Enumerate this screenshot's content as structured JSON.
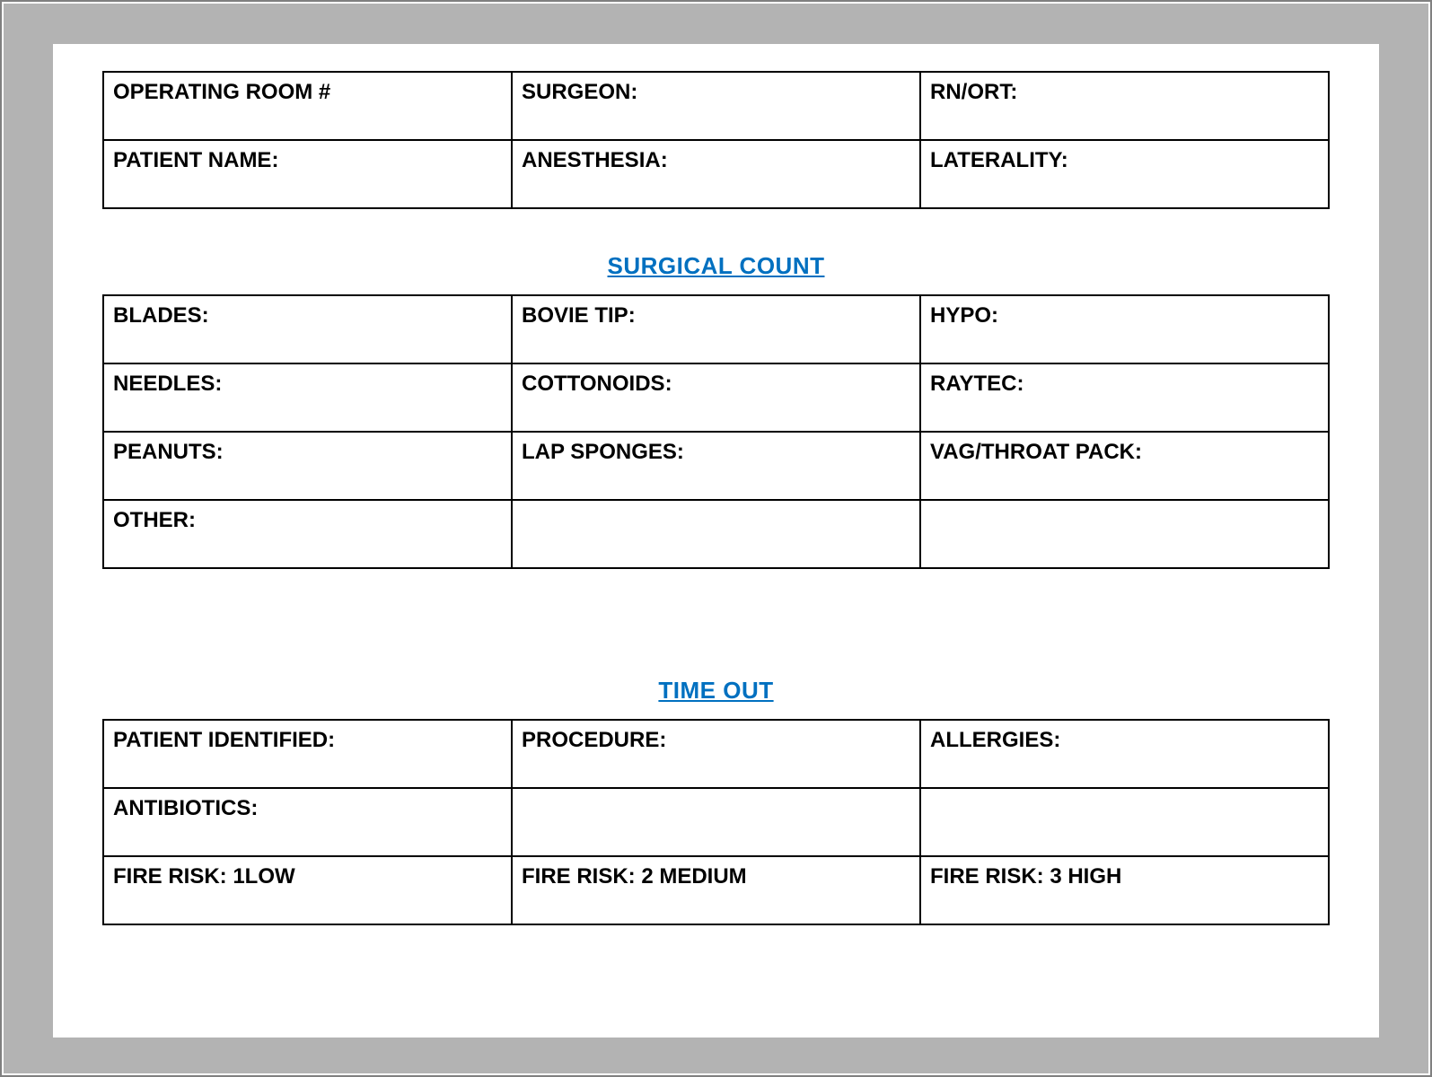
{
  "colors": {
    "frame_border": "#808080",
    "mat_background": "#b3b3b3",
    "page_background": "#ffffff",
    "cell_border": "#000000",
    "text": "#000000",
    "heading_surgical": "#0070c0",
    "heading_timeout": "#0070c0"
  },
  "typography": {
    "cell_font_size_pt": 18,
    "heading_font_size_pt": 20,
    "font_family": "Arial",
    "cell_font_weight": "700",
    "heading_font_weight": "700",
    "heading_underline": true
  },
  "layout": {
    "columns": 3,
    "column_widths_pct": [
      33.3,
      33.3,
      33.4
    ]
  },
  "header_table": {
    "rows": [
      [
        "OPERATING ROOM #",
        "SURGEON:",
        "RN/ORT:"
      ],
      [
        "PATIENT NAME:",
        "ANESTHESIA:",
        "LATERALITY:"
      ]
    ]
  },
  "surgical_count": {
    "heading": "SURGICAL COUNT",
    "rows": [
      [
        "BLADES:",
        "BOVIE TIP:",
        "HYPO:"
      ],
      [
        "NEEDLES:",
        "COTTONOIDS:",
        "RAYTEC:"
      ],
      [
        "PEANUTS:",
        "LAP SPONGES:",
        "VAG/THROAT PACK:"
      ],
      [
        "OTHER:",
        "",
        ""
      ]
    ]
  },
  "time_out": {
    "heading": "TIME OUT",
    "rows": [
      [
        "PATIENT IDENTIFIED:",
        "PROCEDURE:",
        "ALLERGIES:"
      ],
      [
        "ANTIBIOTICS:",
        "",
        ""
      ],
      [
        "FIRE RISK: 1LOW",
        "FIRE RISK: 2 MEDIUM",
        "FIRE RISK: 3 HIGH"
      ]
    ]
  }
}
